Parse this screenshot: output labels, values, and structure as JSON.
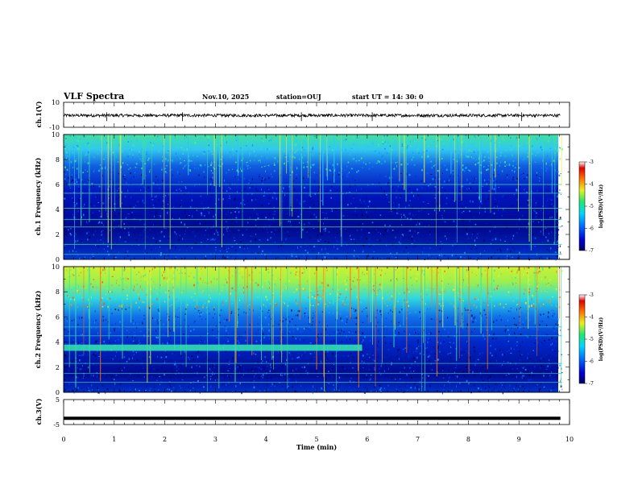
{
  "header": {
    "title": "VLF Spectra",
    "date": "Nov.10, 2025",
    "station": "station=OUJ",
    "start": "start  UT  =   14: 30: 0"
  },
  "chart_data": [
    {
      "type": "line",
      "panel": "ch1-waveform",
      "ylabel": "ch.1(V)",
      "ylim": [
        -10,
        10
      ],
      "y_tick_labels": [
        "10",
        "-10"
      ],
      "xlim": [
        0,
        10
      ],
      "series": [
        {
          "name": "ch.1",
          "mean": -0.5,
          "noise_amplitude": 1.2
        }
      ]
    },
    {
      "type": "heatmap",
      "panel": "ch1-spectrogram",
      "ylabel": "ch.1 Frequency (kHz)",
      "ylim": [
        0,
        10
      ],
      "y_ticks": [
        0,
        2,
        4,
        6,
        8,
        10
      ],
      "xlim": [
        0,
        9.85
      ],
      "colorbar": {
        "label": "log(PSD)(V²/Hz)",
        "range": [
          -7,
          -3
        ],
        "ticks": [
          -3,
          -4,
          -5,
          -6,
          -7
        ]
      },
      "features": {
        "tone_lines_khz": [
          0.4,
          1.2,
          2.6,
          3.2,
          4.1,
          5.3,
          6.0
        ],
        "hiss_top_khz": 8.0
      }
    },
    {
      "type": "heatmap",
      "panel": "ch2-spectrogram",
      "ylabel": "ch.2 Frequency (kHz)",
      "ylim": [
        0,
        10
      ],
      "y_ticks": [
        0,
        2,
        4,
        6,
        8,
        10
      ],
      "xlim": [
        0,
        9.85
      ],
      "colorbar": {
        "label": "log(PSD)(V²/Hz)",
        "range": [
          -7,
          -3
        ],
        "ticks": [
          -3,
          -4,
          -5,
          -6,
          -7
        ]
      },
      "features": {
        "interference_band_khz": [
          3.3,
          3.8
        ],
        "interference_end_min": 5.9,
        "hiss_top_khz": 7.5
      }
    },
    {
      "type": "line",
      "panel": "ch3-waveform",
      "ylabel": "ch.3(V)",
      "ylim": [
        -5,
        5
      ],
      "y_tick_labels": [
        "5",
        "-5"
      ],
      "xlim": [
        0,
        10
      ],
      "series": [
        {
          "name": "ch.3",
          "mean": -2.5
        }
      ]
    }
  ],
  "xaxis": {
    "label": "Time  (min)",
    "ticks": [
      "0",
      "1",
      "2",
      "3",
      "4",
      "5",
      "6",
      "7",
      "8",
      "9",
      "10"
    ]
  },
  "colorbar_top": {
    "label": "log(PSD)(V²/Hz)",
    "ticks": [
      "-3",
      "-4",
      "-5",
      "-6",
      "-7"
    ]
  },
  "colorbar_bottom": {
    "label": "log(PSD)(V²/Hz)",
    "ticks": [
      "-3",
      "-4",
      "-5",
      "-6",
      "-7"
    ]
  }
}
